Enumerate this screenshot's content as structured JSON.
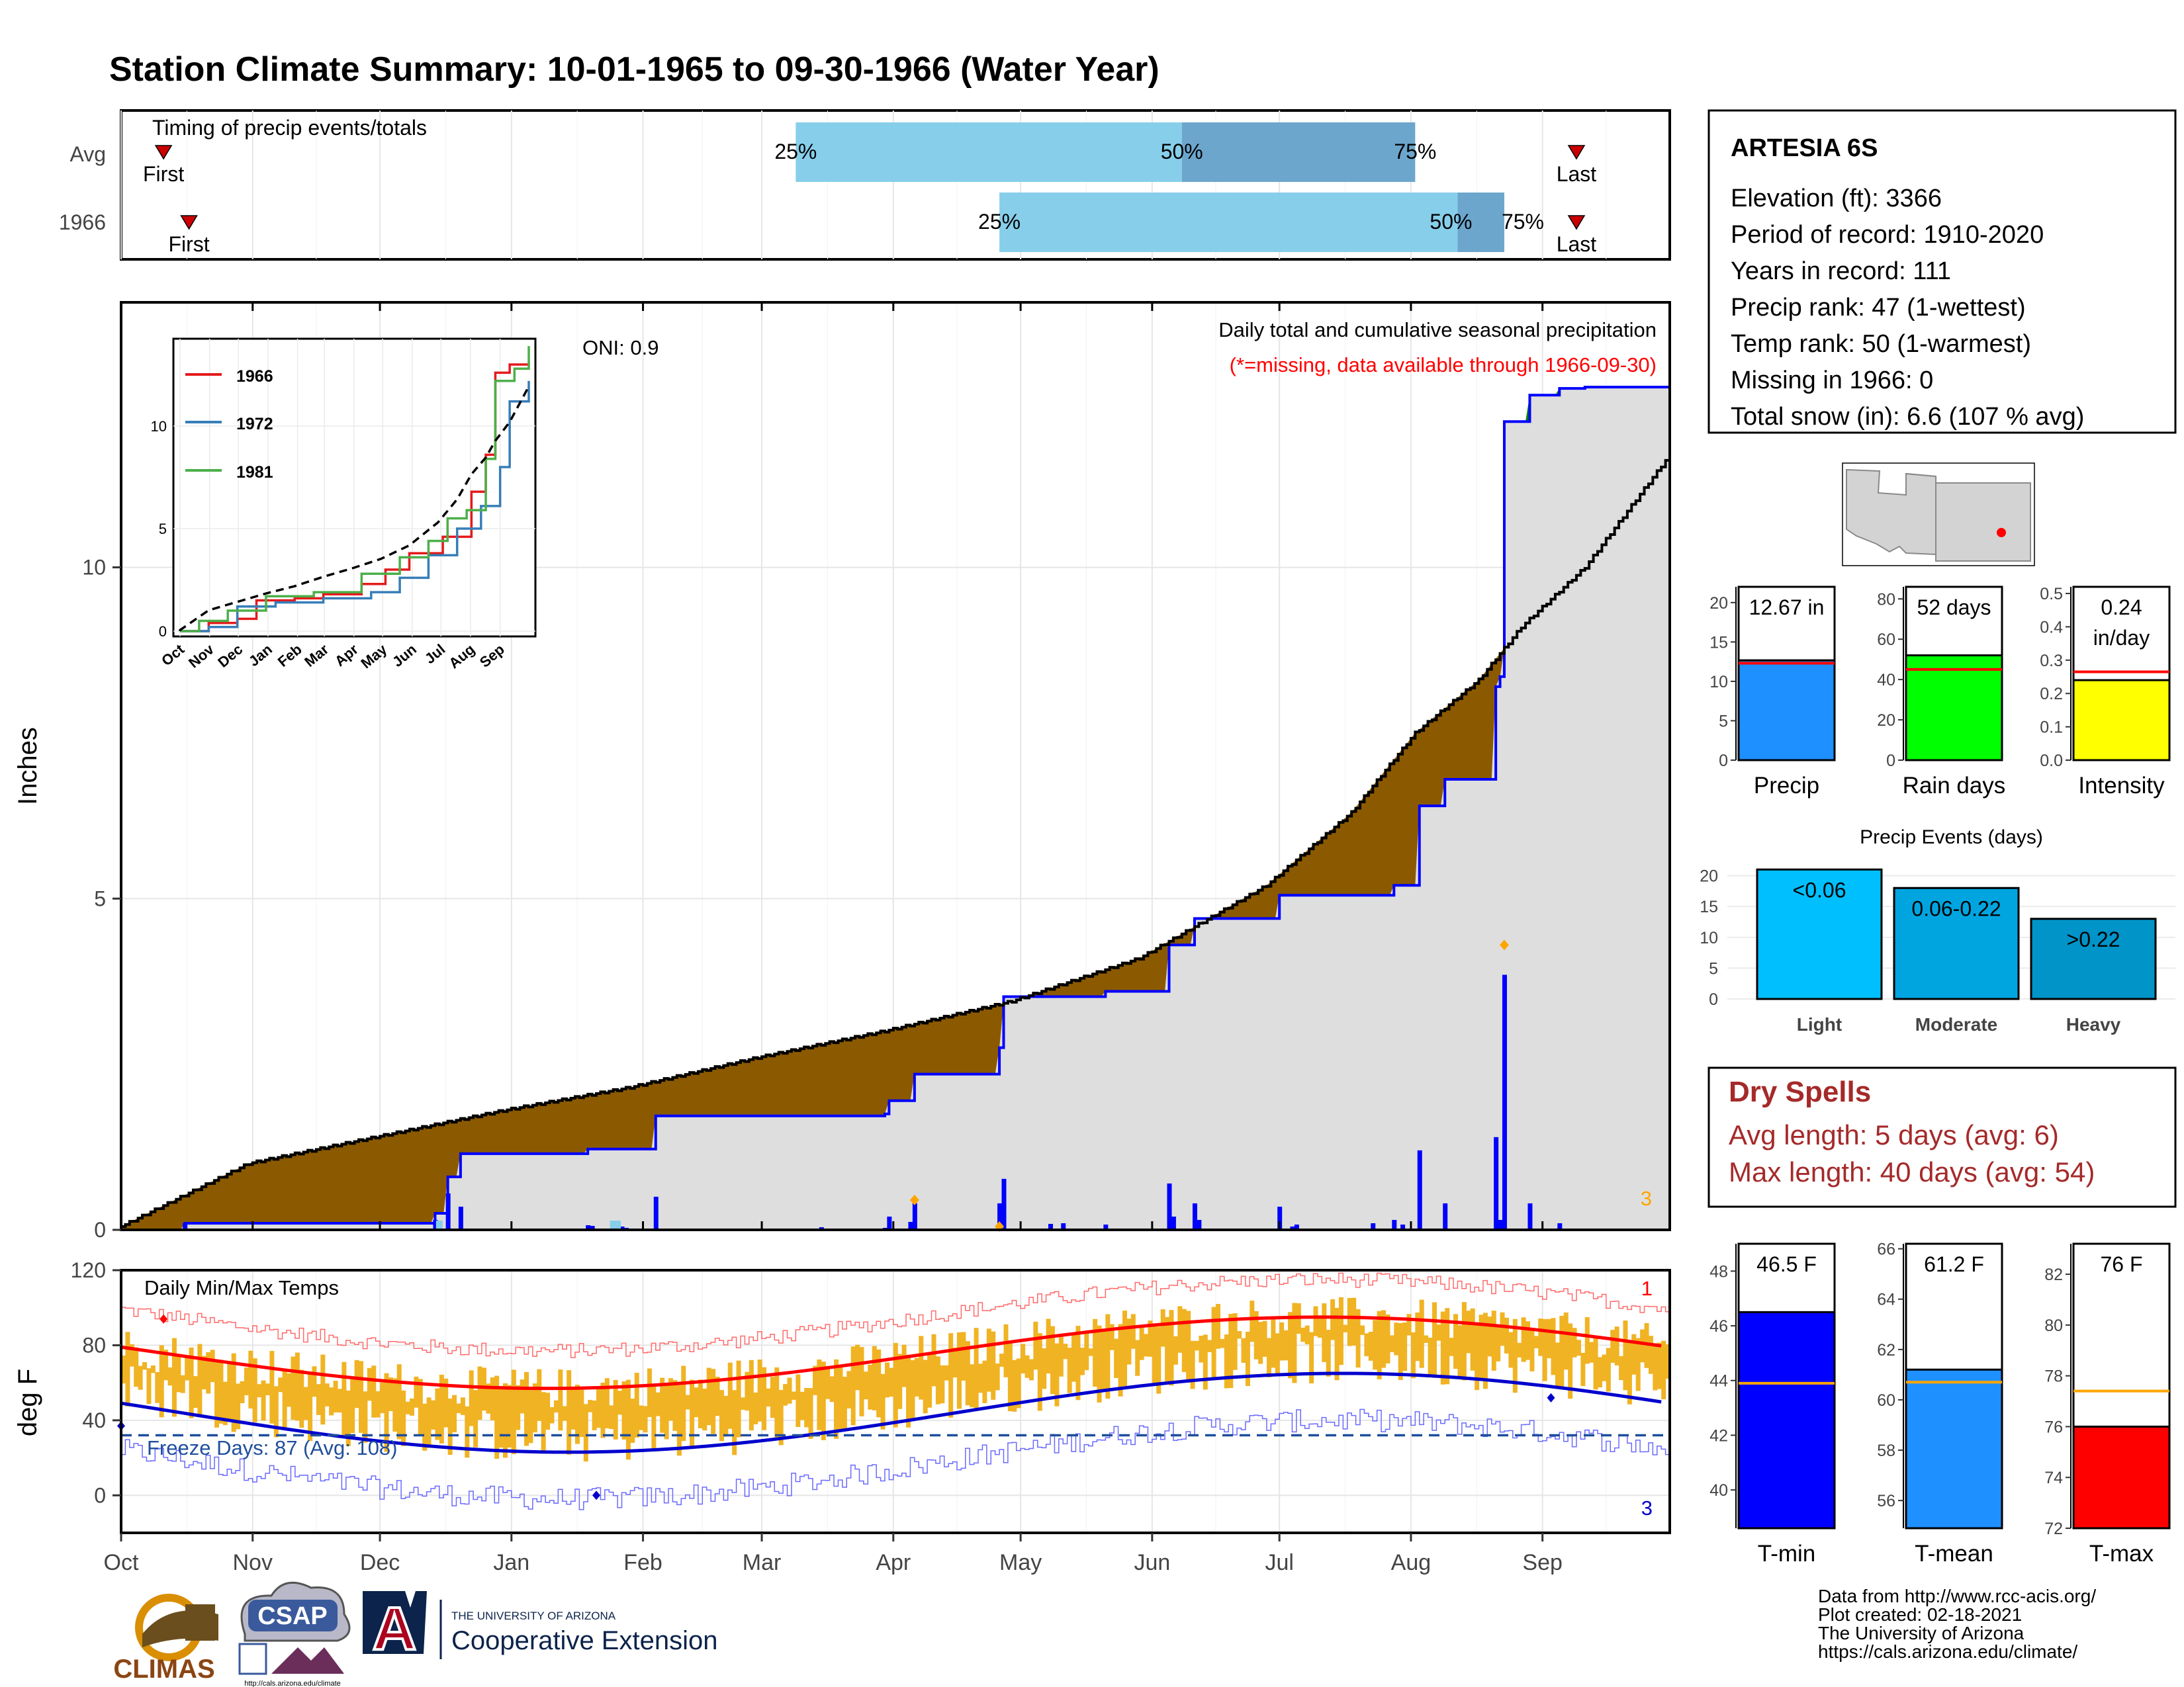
{
  "title": "Station Climate Summary: 10-01-1965 to 09-30-1966 (Water Year)",
  "colors": {
    "title": "#8B1A00",
    "pctLight": "#87CEEB",
    "pctDark": "#6CA6CD",
    "avgArea": "#DEDEDE",
    "deficit": "#8B5A00",
    "surplus": "#008000",
    "cumLine": "#0000FF",
    "tempBar": "#F0B323",
    "avgMax": "#FF0000",
    "avgMin": "#0000CD",
    "precipBar": "#1E90FF",
    "rainBar": "#00FF00",
    "intensityBar": "#FFFF00",
    "tminBar": "#0000FF",
    "tmeanBar": "#1E90FF",
    "tmaxBar": "#FF0000",
    "lightBar": "#00BFFF",
    "modBar": "#00A5E0",
    "heavyBar": "#0094C8",
    "drySpell": "#A52A2A",
    "missing": "#FF0000",
    "extreme": "#FFA500"
  },
  "months": [
    "Oct",
    "Nov",
    "Dec",
    "Jan",
    "Feb",
    "Mar",
    "Apr",
    "May",
    "Jun",
    "Jul",
    "Aug",
    "Sep"
  ],
  "timing": {
    "title": "Timing of precip events/totals",
    "rows": [
      {
        "label": "Avg",
        "first_label": "First",
        "last_label": "Last",
        "first_day": 10,
        "last_day": 343,
        "p25_day": 159,
        "p50_day": 250,
        "p75_day": 305,
        "p25": "25%",
        "p50": "50%",
        "p75": "75%"
      },
      {
        "label": "1966",
        "first_label": "First",
        "last_label": "Last",
        "first_day": 16,
        "last_day": 343,
        "p25_day": 207,
        "p50_day": 315,
        "p75_day": 326,
        "p25": "25%",
        "p50": "50%",
        "p75": "75%"
      }
    ]
  },
  "station": {
    "name": "ARTESIA 6S",
    "lines": [
      "Elevation (ft): 3366",
      "Period of record: 1910-2020",
      "Years in record: 111",
      "Precip rank: 47 (1-wettest)",
      "Temp rank: 50 (1-warmest)",
      "Missing in 1966: 0",
      "Total snow (in): 6.6 (107 % avg)"
    ]
  },
  "precip": {
    "ylabel": "Inches",
    "oni": "ONI: 0.9",
    "title_line1": "Daily total and cumulative seasonal precipitation",
    "title_line2": "(*=missing, data available through 1966-09-30)",
    "corner_count": "3",
    "yticks": [
      "0",
      "5",
      "10"
    ],
    "ymax": 14
  },
  "inset": {
    "series": [
      {
        "name": "1966",
        "color": "#E41A1C"
      },
      {
        "name": "1972",
        "color": "#377EB8"
      },
      {
        "name": "1981",
        "color": "#4DAF4A"
      }
    ],
    "yticks": [
      "0",
      "5",
      "10"
    ],
    "xticks": [
      "Oct",
      "Nov",
      "Dec",
      "Jan",
      "Feb",
      "Mar",
      "Apr",
      "May",
      "Jun",
      "Jul",
      "Aug",
      "Sep"
    ]
  },
  "temps": {
    "ylabel": "deg F",
    "title": "Daily Min/Max Temps",
    "freeze": "Freeze Days: 87 (Avg: 108)",
    "count_hi": "1",
    "count_lo": "3",
    "yticks": [
      "0",
      "40",
      "80",
      "120"
    ],
    "ymin": -20,
    "ymax": 120
  },
  "gauges": {
    "precip": {
      "label": "Precip",
      "value_text": "12.67 in",
      "value": 12.67,
      "avg": 12.3,
      "max": 22,
      "ticks": [
        "0",
        "5",
        "10",
        "15",
        "20"
      ]
    },
    "rain": {
      "label": "Rain days",
      "value_text": "52 days",
      "value": 52,
      "avg": 45,
      "max": 86,
      "ticks": [
        "0",
        "20",
        "40",
        "60",
        "80"
      ]
    },
    "intensity": {
      "label": "Intensity",
      "value_text": "0.24",
      "value_text2": "in/day",
      "value": 0.24,
      "avg": 0.265,
      "max": 0.52,
      "ticks": [
        "0.0",
        "0.1",
        "0.2",
        "0.3",
        "0.4",
        "0.5"
      ]
    },
    "tmin": {
      "label": "T-min",
      "value_text": "46.5 F",
      "value": 46.5,
      "avg": 43.9,
      "min": 38.6,
      "max": 49,
      "ticks": [
        "40",
        "42",
        "44",
        "46",
        "48"
      ]
    },
    "tmean": {
      "label": "T-mean",
      "value_text": "61.2 F",
      "value": 61.2,
      "avg": 60.7,
      "min": 54.9,
      "max": 66.2,
      "ticks": [
        "56",
        "58",
        "60",
        "62",
        "64",
        "66"
      ]
    },
    "tmax": {
      "label": "T-max",
      "value_text": "76 F",
      "value": 76,
      "avg": 77.4,
      "min": 72,
      "max": 83.2,
      "ticks": [
        "72",
        "74",
        "76",
        "78",
        "80",
        "82"
      ]
    }
  },
  "events": {
    "title": "Precip Events (days)",
    "max": 22,
    "ticks": [
      "0",
      "5",
      "10",
      "15",
      "20"
    ],
    "bars": [
      {
        "label": "Light",
        "text": "<0.06",
        "value": 21
      },
      {
        "label": "Moderate",
        "text": "0.06-0.22",
        "value": 18
      },
      {
        "label": "Heavy",
        "text": ">0.22",
        "value": 13
      }
    ]
  },
  "dry": {
    "title": "Dry Spells",
    "line1": "Avg length: 5 days (avg: 6)",
    "line2": "Max length: 40 days (avg: 54)"
  },
  "footer": {
    "lines": [
      "Data from http://www.rcc-acis.org/",
      "Plot created: 02-18-2021",
      "The University of Arizona",
      "https://cals.arizona.edu/climate/"
    ],
    "climas": "CLIMAS",
    "csap": "CSAP",
    "csap_url": "http://cals.arizona.edu/climate",
    "ua_small": "THE UNIVERSITY OF ARIZONA",
    "ua_big": "Cooperative Extension"
  }
}
